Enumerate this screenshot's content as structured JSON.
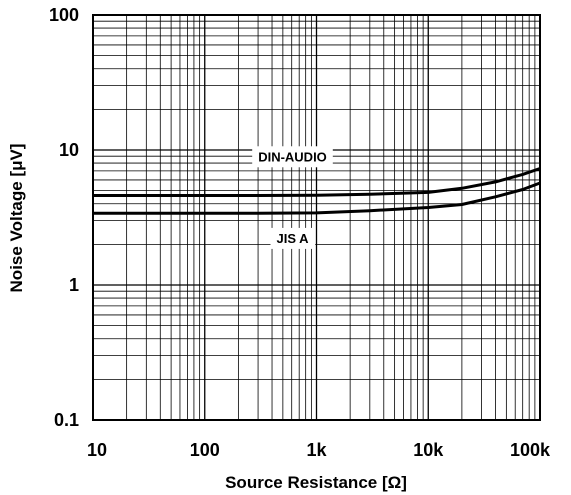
{
  "chart_data": {
    "type": "line",
    "xlabel": "Source Resistance [Ω]",
    "ylabel": "Noise Voltage [μV]",
    "x_scale": "log",
    "y_scale": "log",
    "xlim": [
      10,
      100000
    ],
    "ylim": [
      0.1,
      100
    ],
    "grid": true,
    "x_ticks": [
      {
        "value": 10,
        "label": "10"
      },
      {
        "value": 100,
        "label": "100"
      },
      {
        "value": 1000,
        "label": "1k"
      },
      {
        "value": 10000,
        "label": "10k"
      },
      {
        "value": 100000,
        "label": "100k"
      }
    ],
    "y_ticks": [
      {
        "value": 0.1,
        "label": "0.1"
      },
      {
        "value": 1,
        "label": "1"
      },
      {
        "value": 10,
        "label": "10"
      },
      {
        "value": 100,
        "label": "100"
      }
    ],
    "series": [
      {
        "name": "DIN-AUDIO",
        "color": "#000000",
        "x": [
          10,
          30,
          100,
          300,
          1000,
          3000,
          10000,
          20000,
          40000,
          70000,
          100000
        ],
        "y": [
          4.6,
          4.6,
          4.6,
          4.6,
          4.62,
          4.7,
          4.85,
          5.2,
          5.8,
          6.6,
          7.3
        ]
      },
      {
        "name": "JIS A",
        "color": "#000000",
        "x": [
          10,
          30,
          100,
          300,
          1000,
          3000,
          10000,
          20000,
          40000,
          70000,
          100000
        ],
        "y": [
          3.4,
          3.4,
          3.4,
          3.4,
          3.42,
          3.55,
          3.75,
          3.95,
          4.5,
          5.1,
          5.7
        ]
      }
    ]
  }
}
